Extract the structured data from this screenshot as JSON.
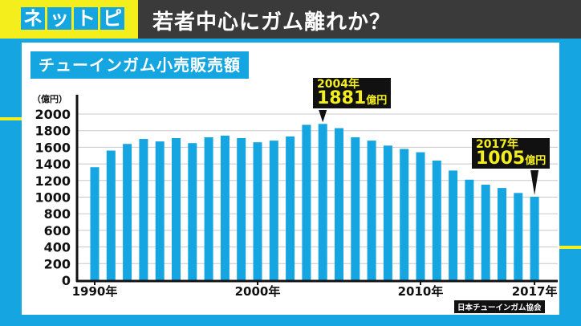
{
  "header": {
    "logo_chars": [
      "ネ",
      "ッ",
      "ト",
      "ピ"
    ],
    "title": "若者中心にガム離れか？"
  },
  "colors": {
    "bar": "#15a5e0",
    "accent_yellow": "#f3ee1c",
    "header_dark": "#3a3a3a"
  },
  "chart_data": {
    "type": "bar",
    "title": "チューインガム小売販売額",
    "ylabel": "（億円）",
    "xlabel": "",
    "ylim": [
      0,
      2000
    ],
    "yticks": [
      0,
      200,
      400,
      600,
      800,
      1000,
      1200,
      1400,
      1600,
      1800,
      2000
    ],
    "grid": true,
    "categories": [
      1990,
      1991,
      1992,
      1993,
      1994,
      1995,
      1996,
      1997,
      1998,
      1999,
      2000,
      2001,
      2002,
      2003,
      2004,
      2005,
      2006,
      2007,
      2008,
      2009,
      2010,
      2011,
      2012,
      2013,
      2014,
      2015,
      2016,
      2017
    ],
    "x_tick_labels": [
      {
        "year": 1990,
        "label": "1990年"
      },
      {
        "year": 2000,
        "label": "2000年"
      },
      {
        "year": 2010,
        "label": "2010年"
      },
      {
        "year": 2017,
        "label": "2017年"
      }
    ],
    "values": [
      1360,
      1560,
      1640,
      1700,
      1670,
      1710,
      1650,
      1720,
      1740,
      1710,
      1660,
      1680,
      1730,
      1870,
      1881,
      1830,
      1720,
      1680,
      1620,
      1580,
      1540,
      1440,
      1320,
      1210,
      1150,
      1110,
      1050,
      1005
    ],
    "annotations": [
      {
        "year": 2004,
        "year_label": "2004年",
        "value_label": "1881",
        "unit": "億円"
      },
      {
        "year": 2017,
        "year_label": "2017年",
        "value_label": "1005",
        "unit": "億円"
      }
    ],
    "source": "日本チューインガム協会"
  }
}
